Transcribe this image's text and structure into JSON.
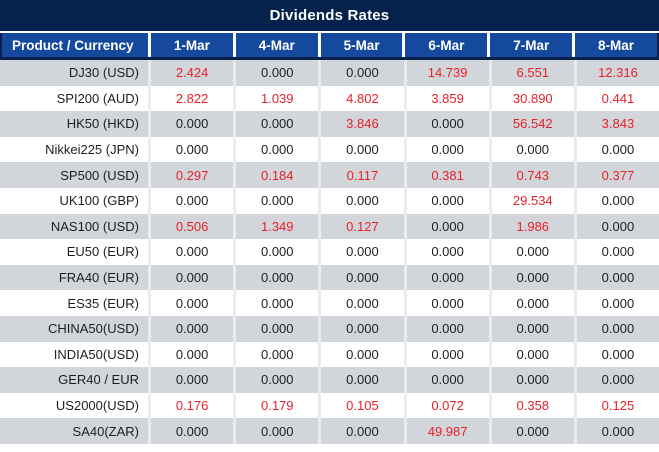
{
  "title": "Dividends Rates",
  "colors": {
    "title_bg": "#04224c",
    "header_bg": "#14499e",
    "header_text": "#ffffff",
    "row_bg": "#ffffff",
    "row_alt_bg": "#d2d6da",
    "separator": "#e9ecef",
    "zero_text": "#1d1e20",
    "nonzero_text": "#e8222a"
  },
  "chart_data": {
    "type": "table",
    "title": "Dividends Rates",
    "columns": [
      "Product / Currency",
      "1-Mar",
      "4-Mar",
      "5-Mar",
      "6-Mar",
      "7-Mar",
      "8-Mar"
    ],
    "rows": [
      {
        "product": "DJ30 (USD)",
        "values": [
          "2.424",
          "0.000",
          "0.000",
          "14.739",
          "6.551",
          "12.316"
        ]
      },
      {
        "product": "SPI200 (AUD)",
        "values": [
          "2.822",
          "1.039",
          "4.802",
          "3.859",
          "30.890",
          "0.441"
        ]
      },
      {
        "product": "HK50 (HKD)",
        "values": [
          "0.000",
          "0.000",
          "3.846",
          "0.000",
          "56.542",
          "3.843"
        ]
      },
      {
        "product": "Nikkei225 (JPN)",
        "values": [
          "0.000",
          "0.000",
          "0.000",
          "0.000",
          "0.000",
          "0.000"
        ]
      },
      {
        "product": "SP500 (USD)",
        "values": [
          "0.297",
          "0.184",
          "0.117",
          "0.381",
          "0.743",
          "0.377"
        ]
      },
      {
        "product": "UK100 (GBP)",
        "values": [
          "0.000",
          "0.000",
          "0.000",
          "0.000",
          "29.534",
          "0.000"
        ]
      },
      {
        "product": "NAS100 (USD)",
        "values": [
          "0.506",
          "1.349",
          "0.127",
          "0.000",
          "1.986",
          "0.000"
        ]
      },
      {
        "product": "EU50 (EUR)",
        "values": [
          "0.000",
          "0.000",
          "0.000",
          "0.000",
          "0.000",
          "0.000"
        ]
      },
      {
        "product": "FRA40 (EUR)",
        "values": [
          "0.000",
          "0.000",
          "0.000",
          "0.000",
          "0.000",
          "0.000"
        ]
      },
      {
        "product": "ES35 (EUR)",
        "values": [
          "0.000",
          "0.000",
          "0.000",
          "0.000",
          "0.000",
          "0.000"
        ]
      },
      {
        "product": "CHINA50(USD)",
        "values": [
          "0.000",
          "0.000",
          "0.000",
          "0.000",
          "0.000",
          "0.000"
        ]
      },
      {
        "product": "INDIA50(USD)",
        "values": [
          "0.000",
          "0.000",
          "0.000",
          "0.000",
          "0.000",
          "0.000"
        ]
      },
      {
        "product": "GER40 / EUR",
        "values": [
          "0.000",
          "0.000",
          "0.000",
          "0.000",
          "0.000",
          "0.000"
        ]
      },
      {
        "product": "US2000(USD)",
        "values": [
          "0.176",
          "0.179",
          "0.105",
          "0.072",
          "0.358",
          "0.125"
        ]
      },
      {
        "product": "SA40(ZAR)",
        "values": [
          "0.000",
          "0.000",
          "0.000",
          "49.987",
          "0.000",
          "0.000"
        ]
      }
    ],
    "highlight_rule": "non-zero values rendered in red, zero values in dark gray",
    "zero_value": "0.000"
  }
}
